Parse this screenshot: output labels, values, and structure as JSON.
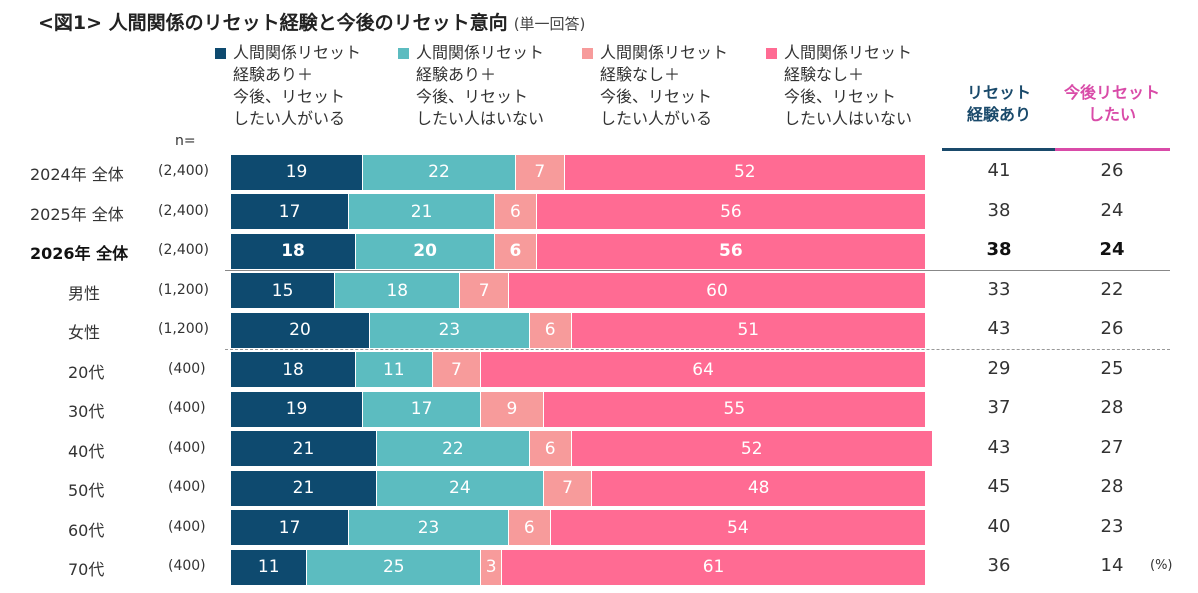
{
  "chart_data": {
    "type": "bar",
    "orientation": "horizontal-stacked-100",
    "title": "<図1> 人間関係のリセット経験と今後のリセット意向",
    "subtitle": "(単一回答)",
    "n_label": "n=",
    "unit": "(%)",
    "legend": [
      {
        "name": "人間関係リセット\n経験あり＋\n今後、リセット\nしたい人がいる",
        "color": "#0e4a6f"
      },
      {
        "name": "人間関係リセット\n経験あり＋\n今後、リセット\nしたい人はいない",
        "color": "#5cbcc0"
      },
      {
        "name": "人間関係リセット\n経験なし＋\n今後、リセット\nしたい人がいる",
        "color": "#f79b9b"
      },
      {
        "name": "人間関係リセット\n経験なし＋\n今後、リセット\nしたい人はいない",
        "color": "#ff6b93"
      }
    ],
    "extra_columns": [
      {
        "header": "リセット\n経験あり",
        "color": "#1a4a6b"
      },
      {
        "header": "今後リセット\nしたい",
        "color": "#d94ba8"
      }
    ],
    "rows": [
      {
        "label": "2024年 全体",
        "n": "(2,400)",
        "values": [
          19,
          22,
          7,
          52
        ],
        "extra": [
          41,
          26
        ],
        "bold": false,
        "group": "year"
      },
      {
        "label": "2025年 全体",
        "n": "(2,400)",
        "values": [
          17,
          21,
          6,
          56
        ],
        "extra": [
          38,
          24
        ],
        "bold": false,
        "group": "year"
      },
      {
        "label": "2026年 全体",
        "n": "(2,400)",
        "values": [
          18,
          20,
          6,
          56
        ],
        "extra": [
          38,
          24
        ],
        "bold": true,
        "group": "year"
      },
      {
        "label": "男性",
        "n": "(1,200)",
        "values": [
          15,
          18,
          7,
          60
        ],
        "extra": [
          33,
          22
        ],
        "bold": false,
        "group": "gender"
      },
      {
        "label": "女性",
        "n": "(1,200)",
        "values": [
          20,
          23,
          6,
          51
        ],
        "extra": [
          43,
          26
        ],
        "bold": false,
        "group": "gender"
      },
      {
        "label": "20代",
        "n": "(400)",
        "values": [
          18,
          11,
          7,
          64
        ],
        "extra": [
          29,
          25
        ],
        "bold": false,
        "group": "age"
      },
      {
        "label": "30代",
        "n": "(400)",
        "values": [
          19,
          17,
          9,
          55
        ],
        "extra": [
          37,
          28
        ],
        "bold": false,
        "group": "age"
      },
      {
        "label": "40代",
        "n": "(400)",
        "values": [
          21,
          22,
          6,
          52
        ],
        "extra": [
          43,
          27
        ],
        "bold": false,
        "group": "age"
      },
      {
        "label": "50代",
        "n": "(400)",
        "values": [
          21,
          24,
          7,
          48
        ],
        "extra": [
          45,
          28
        ],
        "bold": false,
        "group": "age"
      },
      {
        "label": "60代",
        "n": "(400)",
        "values": [
          17,
          23,
          6,
          54
        ],
        "extra": [
          40,
          23
        ],
        "bold": false,
        "group": "age"
      },
      {
        "label": "70代",
        "n": "(400)",
        "values": [
          11,
          25,
          3,
          61
        ],
        "extra": [
          36,
          14
        ],
        "bold": false,
        "group": "age"
      }
    ],
    "xlim": [
      0,
      100
    ]
  }
}
